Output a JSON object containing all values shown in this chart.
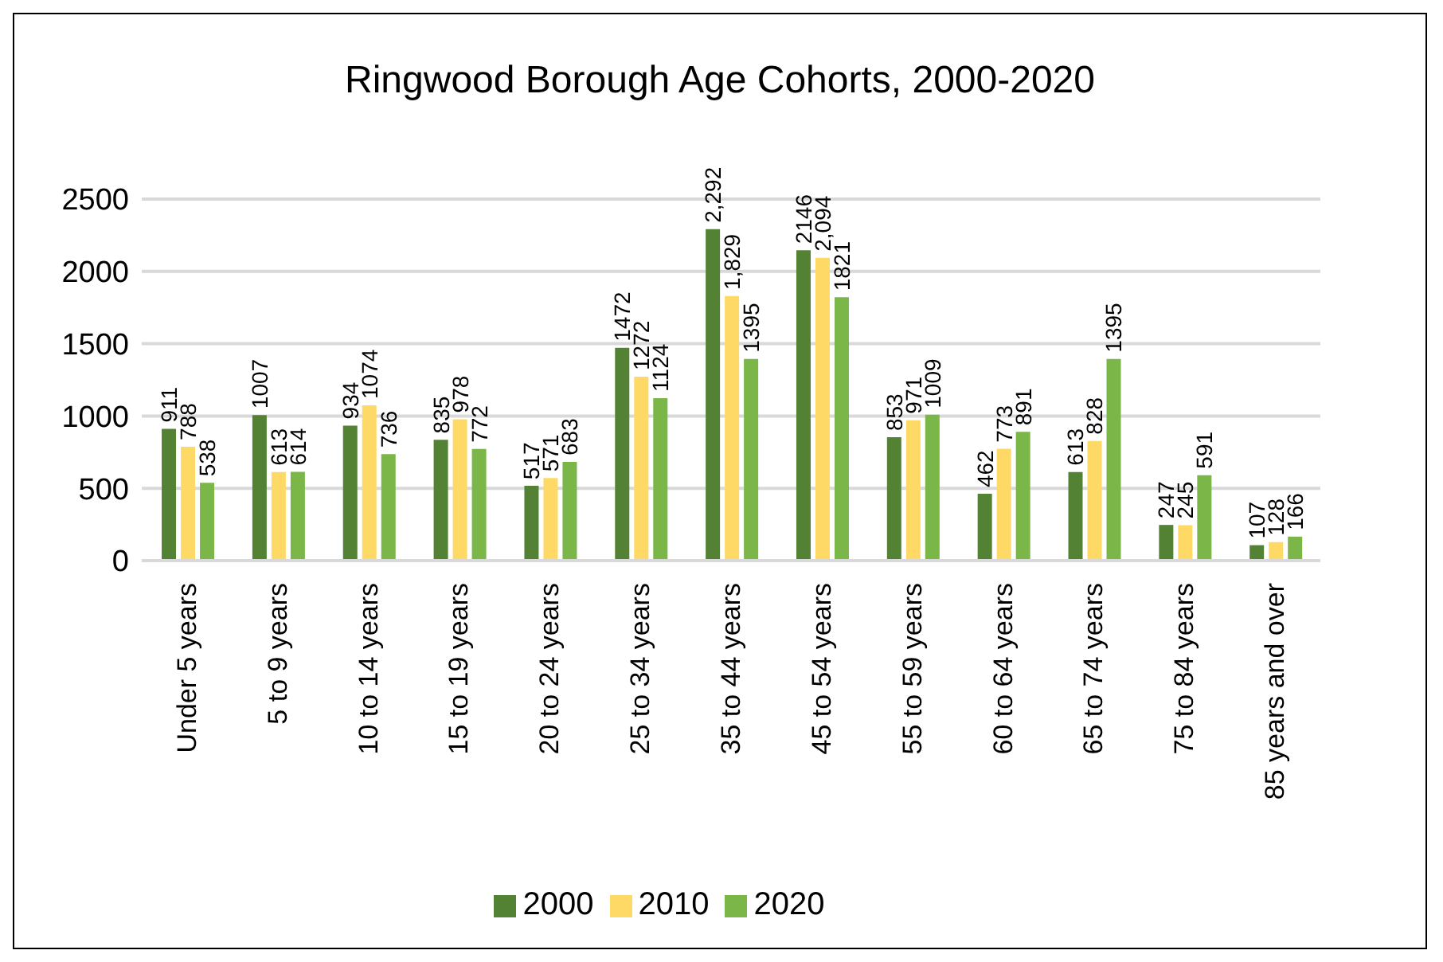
{
  "chart_data": {
    "type": "bar",
    "title": "Ringwood Borough Age Cohorts, 2000-2020",
    "categories": [
      "Under 5 years",
      "5 to 9 years",
      "10 to 14 years",
      "15 to 19 years",
      "20 to 24 years",
      "25 to 34 years",
      "35 to 44 years",
      "45 to 54 years",
      "55 to 59 years",
      "60 to 64 years",
      "65 to 74 years",
      "75 to 84 years",
      "85 years and over"
    ],
    "series": [
      {
        "name": "2000",
        "color": "#548235",
        "values": [
          911,
          1007,
          934,
          835,
          517,
          1472,
          2292,
          2146,
          853,
          462,
          613,
          247,
          107
        ],
        "value_labels": [
          "911",
          "1007",
          "934",
          "835",
          "517",
          "1472",
          "2,292",
          "2146",
          "853",
          "462",
          "613",
          "247",
          "107"
        ]
      },
      {
        "name": "2010",
        "color": "#ffd966",
        "values": [
          788,
          613,
          1074,
          978,
          571,
          1272,
          1829,
          2094,
          971,
          773,
          828,
          245,
          128
        ],
        "value_labels": [
          "788",
          "613",
          "1074",
          "978",
          "571",
          "1272",
          "1,829",
          "2,094",
          "971",
          "773",
          "828",
          "245",
          "128"
        ]
      },
      {
        "name": "2020",
        "color": "#7ab648",
        "values": [
          538,
          614,
          736,
          772,
          683,
          1124,
          1395,
          1821,
          1009,
          891,
          1395,
          591,
          166
        ],
        "value_labels": [
          "538",
          "614",
          "736",
          "772",
          "683",
          "1124",
          "1395",
          "1821",
          "1009",
          "891",
          "1395",
          "591",
          "166"
        ]
      }
    ],
    "ylim": [
      0,
      2500
    ],
    "yticks": [
      0,
      500,
      1000,
      1500,
      2000,
      2500
    ],
    "grid": "y",
    "legend": "bottom"
  }
}
